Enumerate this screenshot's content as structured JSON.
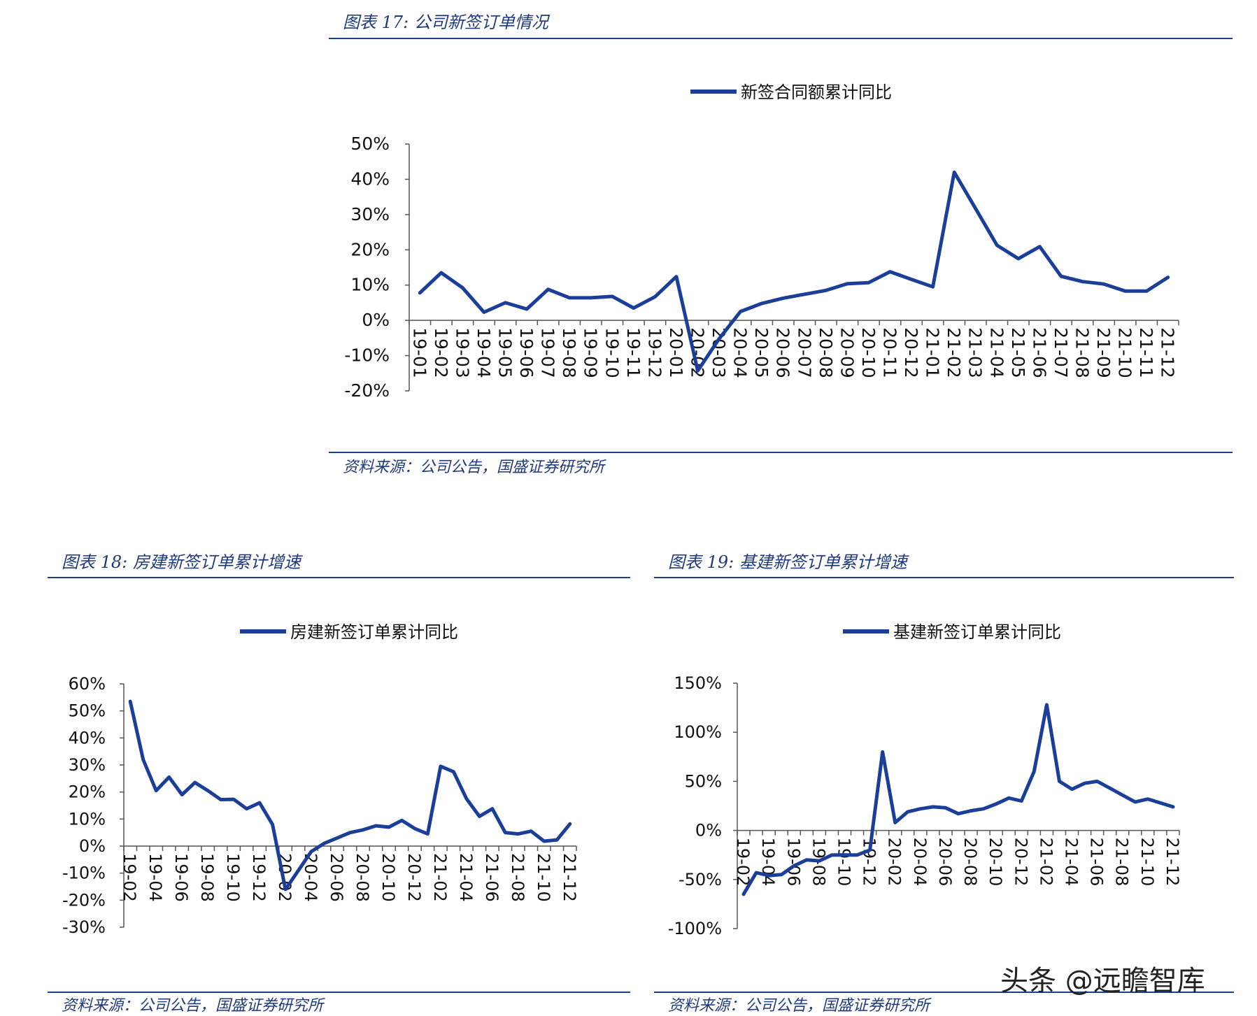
{
  "figure17": {
    "title": "图表 17:  公司新签订单情况",
    "source": "资料来源：公司公告，国盛证券研究所"
  },
  "figure18": {
    "title": "图表 18:  房建新签订单累计增速",
    "source": "资料来源：公司公告，国盛证券研究所"
  },
  "figure19": {
    "title": "图表 19:  基建新签订单累计增速",
    "source": "资料来源：公司公告，国盛证券研究所"
  },
  "watermark": "头条 @远瞻智库",
  "colors": {
    "line": "#1b3f99",
    "accent": "#1b3f8b",
    "title": "#1f3a7a"
  },
  "chart_data": [
    {
      "type": "line",
      "legend": "新签合同额累计同比",
      "legend_position": "top",
      "grid": false,
      "ylim": [
        -20,
        50
      ],
      "yticks": [
        -20,
        -10,
        0,
        10,
        20,
        30,
        40,
        50
      ],
      "ytick_labels": [
        "-20%",
        "-10%",
        "0%",
        "10%",
        "20%",
        "30%",
        "40%",
        "50%"
      ],
      "categories": [
        "19-01",
        "19-02",
        "19-03",
        "19-04",
        "19-05",
        "19-06",
        "19-07",
        "19-08",
        "19-09",
        "19-10",
        "19-11",
        "19-12",
        "20-01",
        "20-02",
        "20-03",
        "20-04",
        "20-05",
        "20-06",
        "20-07",
        "20-08",
        "20-09",
        "20-10",
        "20-11",
        "20-12",
        "21-01",
        "21-02",
        "21-03",
        "21-04",
        "21-05",
        "21-06",
        "21-07",
        "21-08",
        "21-09",
        "21-10",
        "21-11",
        "21-12"
      ],
      "tick_labels": [
        "19-01",
        "19-02",
        "19-03",
        "19-04",
        "19-05",
        "19-06",
        "19-07",
        "19-08",
        "19-09",
        "19-10",
        "19-11",
        "19-12",
        "20-01",
        "20-02",
        "20-03",
        "20-04",
        "20-05",
        "20-06",
        "20-07",
        "20-08",
        "20-09",
        "20-10",
        "20-11",
        "20-12",
        "21-01",
        "21-02",
        "21-03",
        "21-04",
        "21-05",
        "21-06",
        "21-07",
        "21-08",
        "21-09",
        "21-10",
        "21-11",
        "21-12"
      ],
      "series": [
        {
          "name": "新签合同额累计同比",
          "values": [
            7.8,
            13.5,
            9.2,
            2.3,
            5.0,
            3.2,
            8.8,
            6.4,
            6.4,
            6.8,
            3.5,
            6.7,
            12.4,
            -14.3,
            -5.2,
            2.5,
            4.8,
            6.3,
            7.4,
            8.5,
            10.4,
            10.7,
            13.8,
            11.6,
            9.5,
            42.0,
            31.7,
            21.3,
            17.5,
            20.9,
            12.5,
            11.0,
            10.3,
            8.3,
            8.3,
            12.2
          ]
        }
      ]
    },
    {
      "type": "line",
      "legend": "房建新签订单累计同比",
      "legend_position": "top",
      "grid": false,
      "ylim": [
        -30,
        60
      ],
      "yticks": [
        -30,
        -20,
        -10,
        0,
        10,
        20,
        30,
        40,
        50,
        60
      ],
      "ytick_labels": [
        "-30%",
        "-20%",
        "-10%",
        "0%",
        "10%",
        "20%",
        "30%",
        "40%",
        "50%",
        "60%"
      ],
      "categories": [
        "19-02",
        "19-03",
        "19-04",
        "19-05",
        "19-06",
        "19-07",
        "19-08",
        "19-09",
        "19-10",
        "19-11",
        "19-12",
        "20-01",
        "20-02",
        "20-03",
        "20-04",
        "20-05",
        "20-06",
        "20-07",
        "20-08",
        "20-09",
        "20-10",
        "20-11",
        "20-12",
        "21-01",
        "21-02",
        "21-03",
        "21-04",
        "21-05",
        "21-06",
        "21-07",
        "21-08",
        "21-09",
        "21-10",
        "21-11",
        "21-12"
      ],
      "tick_labels": [
        "19-02",
        "19-04",
        "19-06",
        "19-08",
        "19-10",
        "19-12",
        "20-02",
        "20-04",
        "20-06",
        "20-08",
        "20-10",
        "20-12",
        "21-02",
        "21-04",
        "21-06",
        "21-08",
        "21-10",
        "21-12"
      ],
      "series": [
        {
          "name": "房建新签订单累计同比",
          "values": [
            53.5,
            32.0,
            20.5,
            25.5,
            19.0,
            23.5,
            20.5,
            17.2,
            17.3,
            13.8,
            16.0,
            8.0,
            -16.0,
            -9.0,
            -2.0,
            1.0,
            3.0,
            5.0,
            6.0,
            7.5,
            7.0,
            9.5,
            6.5,
            4.5,
            29.5,
            27.5,
            17.5,
            11.0,
            13.8,
            5.0,
            4.5,
            5.5,
            1.8,
            2.3,
            8.2
          ]
        }
      ]
    },
    {
      "type": "line",
      "legend": "基建新签订单累计同比",
      "legend_position": "top",
      "grid": false,
      "ylim": [
        -100,
        150
      ],
      "yticks": [
        -100,
        -50,
        0,
        50,
        100,
        150
      ],
      "ytick_labels": [
        "-100%",
        "-50%",
        "0%",
        "50%",
        "100%",
        "150%"
      ],
      "categories": [
        "19-02",
        "19-03",
        "19-04",
        "19-05",
        "19-06",
        "19-07",
        "19-08",
        "19-09",
        "19-10",
        "19-11",
        "19-12",
        "20-01",
        "20-02",
        "20-03",
        "20-04",
        "20-05",
        "20-06",
        "20-07",
        "20-08",
        "20-09",
        "20-10",
        "20-11",
        "20-12",
        "21-01",
        "21-02",
        "21-03",
        "21-04",
        "21-05",
        "21-06",
        "21-07",
        "21-08",
        "21-09",
        "21-10",
        "21-11",
        "21-12"
      ],
      "tick_labels": [
        "19-02",
        "19-04",
        "19-06",
        "19-08",
        "19-10",
        "19-12",
        "20-02",
        "20-04",
        "20-06",
        "20-08",
        "20-10",
        "20-12",
        "21-02",
        "21-04",
        "21-06",
        "21-08",
        "21-10",
        "21-12"
      ],
      "series": [
        {
          "name": "基建新签订单累计同比",
          "values": [
            -65,
            -43,
            -46,
            -45,
            -36,
            -30,
            -31,
            -25,
            -25,
            -25,
            -20,
            80,
            8,
            19,
            22,
            24,
            23,
            17,
            20,
            22,
            27,
            33,
            30,
            60,
            128,
            50,
            42,
            48,
            50,
            43,
            36,
            29,
            32,
            28,
            24
          ]
        }
      ]
    }
  ]
}
